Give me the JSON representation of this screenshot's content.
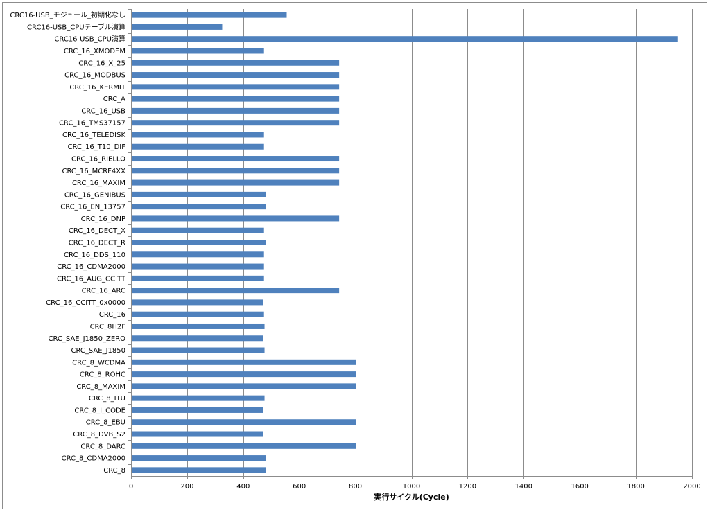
{
  "chart_data": {
    "type": "bar",
    "orientation": "horizontal",
    "xlabel": "実行サイクル(Cycle)",
    "ylabel": "",
    "xlim": [
      0,
      2000
    ],
    "xticks": [
      0,
      200,
      400,
      600,
      800,
      1000,
      1200,
      1400,
      1600,
      1800,
      2000
    ],
    "grid": true,
    "bar_color": "#4f81bd",
    "categories": [
      "CRC16-USB_モジュール_初期化なし",
      "CRC16-USB_CPUテーブル演算",
      "CRC16-USB_CPU演算",
      "CRC_16_XMODEM",
      "CRC_16_X_25",
      "CRC_16_MODBUS",
      "CRC_16_KERMIT",
      "CRC_A",
      "CRC_16_USB",
      "CRC_16_TMS37157",
      "CRC_16_TELEDISK",
      "CRC_16_T10_DIF",
      "CRC_16_RIELLO",
      "CRC_16_MCRF4XX",
      "CRC_16_MAXIM",
      "CRC_16_GENIBUS",
      "CRC_16_EN_13757",
      "CRC_16_DNP",
      "CRC_16_DECT_X",
      "CRC_16_DECT_R",
      "CRC_16_DDS_110",
      "CRC_16_CDMA2000",
      "CRC_16_AUG_CCITT",
      "CRC_16_ARC",
      "CRC_16_CCITT_0x0000",
      "CRC_16",
      "CRC_8H2F",
      "CRC_SAE_J1850_ZERO",
      "CRC_SAE_J1850",
      "CRC_8_WCDMA",
      "CRC_8_ROHC",
      "CRC_8_MAXIM",
      "CRC_8_ITU",
      "CRC_8_I_CODE",
      "CRC_8_EBU",
      "CRC_8_DVB_S2",
      "CRC_8_DARC",
      "CRC_8_CDMA2000",
      "CRC_8"
    ],
    "values": [
      555,
      325,
      1950,
      474,
      742,
      742,
      742,
      742,
      742,
      742,
      474,
      474,
      742,
      742,
      742,
      480,
      480,
      742,
      474,
      480,
      474,
      474,
      474,
      742,
      472,
      474,
      476,
      470,
      476,
      803,
      803,
      803,
      476,
      470,
      803,
      470,
      803,
      480,
      480
    ]
  }
}
